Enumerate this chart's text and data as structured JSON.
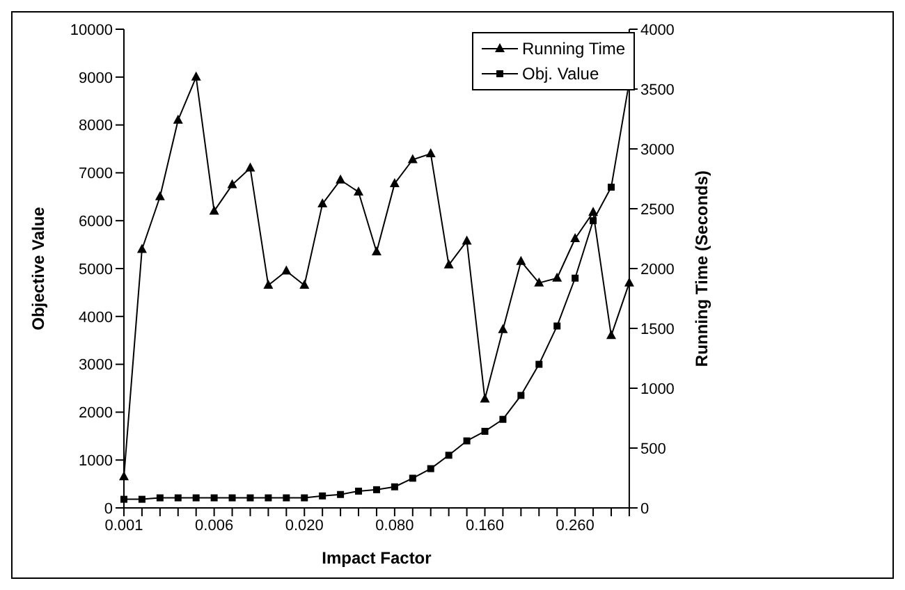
{
  "chart_data": {
    "type": "line",
    "xlabel": "Impact Factor",
    "ylabel": "Objective Value",
    "y2label": "Running Time (Seconds)",
    "categories": [
      "0.001",
      null,
      null,
      null,
      null,
      "0.006",
      null,
      null,
      null,
      null,
      "0.020",
      null,
      null,
      null,
      null,
      "0.080",
      null,
      null,
      null,
      null,
      "0.160",
      null,
      null,
      null,
      null,
      "0.260",
      null,
      null,
      null
    ],
    "series": [
      {
        "name": "Running Time",
        "color": "#000000",
        "axis": "y2",
        "marker": "triangle",
        "values": [
          260,
          2160,
          2600,
          3240,
          3600,
          2480,
          2700,
          2840,
          1860,
          1980,
          1860,
          2540,
          2740,
          2640,
          2140,
          2710,
          2910,
          2960,
          2030,
          2230,
          910,
          1490,
          2060,
          1880,
          1920,
          2250,
          2470,
          1440,
          1880
        ]
      },
      {
        "name": "Obj. Value",
        "color": "#000000",
        "marker": "square",
        "values": [
          180,
          180,
          210,
          210,
          210,
          210,
          210,
          210,
          210,
          210,
          210,
          250,
          280,
          350,
          380,
          440,
          620,
          820,
          1100,
          1400,
          1600,
          1850,
          2350,
          3000,
          3800,
          4800,
          6000,
          6700,
          8900
        ]
      }
    ],
    "ylim": [
      0,
      10000
    ],
    "yticks": [
      0,
      1000,
      2000,
      3000,
      4000,
      5000,
      6000,
      7000,
      8000,
      9000,
      10000
    ],
    "y2lim": [
      0,
      4000
    ],
    "y2ticks": [
      0,
      500,
      1000,
      1500,
      2000,
      2500,
      3000,
      3500,
      4000
    ],
    "grid": false,
    "legend": "top right",
    "line_style": "solid"
  }
}
